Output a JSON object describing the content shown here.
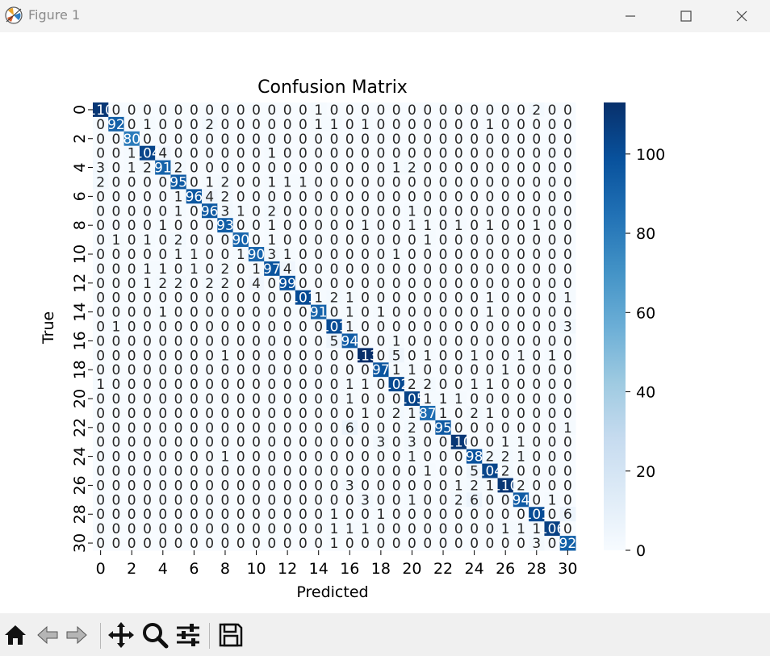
{
  "window": {
    "title": "Figure 1",
    "controls": [
      "minimize-icon",
      "maximize-icon",
      "close-icon"
    ]
  },
  "toolbar": {
    "tools": [
      "home-icon",
      "back-icon",
      "forward-icon",
      "pan-icon",
      "zoom-icon",
      "configure-subplots-icon",
      "save-icon"
    ]
  },
  "chart_data": {
    "type": "heatmap",
    "title": "Confusion Matrix",
    "xlabel": "Predicted",
    "ylabel": "True",
    "x_ticks": [
      0,
      2,
      4,
      6,
      8,
      10,
      12,
      14,
      16,
      18,
      20,
      22,
      24,
      26,
      28,
      30
    ],
    "y_ticks": [
      0,
      2,
      4,
      6,
      8,
      10,
      12,
      14,
      16,
      18,
      20,
      22,
      24,
      26,
      28,
      30
    ],
    "colormap": "Blues",
    "colorbar": {
      "ticks": [
        0,
        20,
        40,
        60,
        80,
        100
      ],
      "range": [
        0,
        113
      ]
    },
    "matrix": [
      [
        110,
        0,
        0,
        0,
        0,
        0,
        0,
        0,
        0,
        0,
        0,
        0,
        0,
        0,
        1,
        0,
        0,
        0,
        0,
        0,
        0,
        0,
        0,
        0,
        0,
        0,
        0,
        0,
        2,
        0,
        0
      ],
      [
        0,
        92,
        0,
        1,
        0,
        0,
        0,
        2,
        0,
        0,
        0,
        0,
        0,
        0,
        1,
        1,
        0,
        1,
        0,
        0,
        0,
        0,
        0,
        0,
        0,
        1,
        0,
        0,
        0,
        0,
        0
      ],
      [
        0,
        0,
        80,
        0,
        0,
        0,
        0,
        0,
        0,
        0,
        0,
        0,
        0,
        0,
        0,
        0,
        0,
        0,
        0,
        0,
        0,
        0,
        0,
        0,
        0,
        0,
        0,
        0,
        0,
        0,
        0
      ],
      [
        0,
        0,
        1,
        104,
        4,
        0,
        0,
        0,
        0,
        0,
        0,
        1,
        0,
        0,
        0,
        0,
        0,
        0,
        0,
        0,
        0,
        0,
        0,
        0,
        0,
        0,
        0,
        0,
        0,
        0,
        0
      ],
      [
        3,
        0,
        1,
        2,
        91,
        2,
        0,
        0,
        0,
        0,
        0,
        0,
        0,
        0,
        0,
        0,
        0,
        0,
        0,
        1,
        2,
        0,
        0,
        0,
        0,
        0,
        0,
        0,
        0,
        0,
        0
      ],
      [
        2,
        0,
        0,
        0,
        0,
        95,
        0,
        1,
        2,
        0,
        0,
        1,
        1,
        1,
        0,
        0,
        0,
        0,
        0,
        0,
        0,
        0,
        0,
        0,
        0,
        0,
        0,
        0,
        0,
        0,
        0
      ],
      [
        0,
        0,
        0,
        0,
        0,
        1,
        96,
        4,
        2,
        0,
        0,
        0,
        0,
        0,
        0,
        0,
        0,
        0,
        0,
        0,
        0,
        0,
        0,
        0,
        0,
        0,
        0,
        0,
        0,
        0,
        0
      ],
      [
        0,
        0,
        0,
        0,
        0,
        1,
        0,
        96,
        3,
        1,
        0,
        2,
        0,
        0,
        0,
        0,
        0,
        0,
        0,
        0,
        1,
        0,
        0,
        0,
        0,
        0,
        0,
        0,
        0,
        0,
        0
      ],
      [
        0,
        0,
        0,
        0,
        1,
        0,
        0,
        0,
        93,
        0,
        0,
        1,
        0,
        0,
        0,
        0,
        0,
        1,
        0,
        0,
        1,
        1,
        0,
        1,
        0,
        1,
        0,
        0,
        1,
        0,
        0
      ],
      [
        0,
        1,
        0,
        1,
        0,
        2,
        0,
        0,
        0,
        90,
        0,
        1,
        0,
        0,
        0,
        0,
        0,
        0,
        0,
        0,
        0,
        1,
        0,
        0,
        0,
        0,
        0,
        0,
        0,
        0,
        0
      ],
      [
        0,
        0,
        0,
        0,
        0,
        1,
        1,
        0,
        0,
        1,
        90,
        3,
        1,
        0,
        0,
        0,
        0,
        0,
        0,
        1,
        0,
        0,
        0,
        0,
        0,
        0,
        0,
        0,
        0,
        0,
        0
      ],
      [
        0,
        0,
        0,
        1,
        1,
        0,
        1,
        0,
        2,
        0,
        1,
        97,
        4,
        0,
        0,
        0,
        0,
        0,
        0,
        0,
        0,
        0,
        0,
        0,
        0,
        0,
        0,
        0,
        0,
        0,
        0
      ],
      [
        0,
        0,
        0,
        1,
        2,
        2,
        0,
        2,
        2,
        0,
        4,
        0,
        99,
        0,
        0,
        0,
        0,
        0,
        0,
        0,
        0,
        0,
        0,
        0,
        0,
        0,
        0,
        0,
        0,
        0,
        0
      ],
      [
        0,
        0,
        0,
        0,
        0,
        0,
        0,
        0,
        0,
        0,
        0,
        0,
        0,
        101,
        1,
        2,
        1,
        0,
        0,
        0,
        0,
        0,
        0,
        0,
        0,
        1,
        0,
        0,
        0,
        0,
        1
      ],
      [
        0,
        0,
        0,
        0,
        1,
        0,
        0,
        0,
        0,
        0,
        0,
        0,
        0,
        0,
        91,
        0,
        1,
        0,
        1,
        0,
        0,
        0,
        0,
        0,
        0,
        1,
        0,
        0,
        0,
        0,
        0
      ],
      [
        0,
        1,
        0,
        0,
        0,
        0,
        0,
        0,
        0,
        0,
        0,
        0,
        0,
        0,
        0,
        101,
        1,
        0,
        0,
        0,
        0,
        0,
        0,
        0,
        0,
        0,
        0,
        0,
        0,
        0,
        3
      ],
      [
        0,
        0,
        0,
        0,
        0,
        0,
        0,
        0,
        0,
        0,
        0,
        0,
        0,
        0,
        0,
        5,
        94,
        0,
        0,
        1,
        0,
        0,
        0,
        0,
        0,
        0,
        0,
        0,
        0,
        0,
        0
      ],
      [
        0,
        0,
        0,
        0,
        0,
        0,
        0,
        0,
        1,
        0,
        0,
        0,
        0,
        0,
        0,
        0,
        0,
        113,
        0,
        5,
        0,
        1,
        0,
        0,
        1,
        0,
        0,
        1,
        0,
        1,
        0
      ],
      [
        0,
        0,
        0,
        0,
        0,
        0,
        0,
        0,
        0,
        0,
        0,
        0,
        0,
        0,
        0,
        0,
        0,
        0,
        97,
        1,
        1,
        0,
        0,
        0,
        0,
        0,
        1,
        0,
        0,
        0,
        0
      ],
      [
        1,
        0,
        0,
        0,
        0,
        0,
        0,
        0,
        0,
        0,
        0,
        0,
        0,
        0,
        0,
        0,
        1,
        1,
        0,
        102,
        2,
        2,
        0,
        0,
        1,
        1,
        0,
        0,
        0,
        0,
        0
      ],
      [
        0,
        0,
        0,
        0,
        0,
        0,
        0,
        0,
        0,
        0,
        0,
        0,
        0,
        0,
        0,
        0,
        1,
        0,
        0,
        0,
        105,
        1,
        1,
        1,
        0,
        0,
        0,
        0,
        0,
        0,
        0
      ],
      [
        0,
        0,
        0,
        0,
        0,
        0,
        0,
        0,
        0,
        0,
        0,
        0,
        0,
        0,
        0,
        0,
        0,
        1,
        0,
        2,
        1,
        87,
        1,
        0,
        2,
        1,
        0,
        0,
        0,
        0,
        0
      ],
      [
        0,
        0,
        0,
        0,
        0,
        0,
        0,
        0,
        0,
        0,
        0,
        0,
        0,
        0,
        0,
        0,
        6,
        0,
        0,
        0,
        2,
        0,
        95,
        0,
        0,
        0,
        0,
        0,
        0,
        0,
        1
      ],
      [
        0,
        0,
        0,
        0,
        0,
        0,
        0,
        0,
        0,
        0,
        0,
        0,
        0,
        0,
        0,
        0,
        0,
        0,
        3,
        0,
        3,
        0,
        0,
        110,
        0,
        0,
        1,
        1,
        0,
        0,
        0
      ],
      [
        0,
        0,
        0,
        0,
        0,
        0,
        0,
        0,
        1,
        0,
        0,
        0,
        0,
        0,
        0,
        0,
        0,
        0,
        0,
        0,
        1,
        0,
        0,
        0,
        98,
        2,
        2,
        1,
        0,
        0,
        0
      ],
      [
        0,
        0,
        0,
        0,
        0,
        0,
        0,
        0,
        0,
        0,
        0,
        0,
        0,
        0,
        0,
        0,
        0,
        0,
        0,
        0,
        0,
        1,
        0,
        0,
        5,
        104,
        2,
        0,
        0,
        0,
        0
      ],
      [
        0,
        0,
        0,
        0,
        0,
        0,
        0,
        0,
        0,
        0,
        0,
        0,
        0,
        0,
        0,
        0,
        3,
        0,
        0,
        0,
        0,
        0,
        0,
        1,
        2,
        1,
        110,
        2,
        0,
        0,
        0
      ],
      [
        0,
        0,
        0,
        0,
        0,
        0,
        0,
        0,
        0,
        0,
        0,
        0,
        0,
        0,
        0,
        0,
        0,
        3,
        0,
        0,
        1,
        0,
        0,
        2,
        6,
        0,
        0,
        94,
        0,
        1,
        0
      ],
      [
        0,
        0,
        0,
        0,
        0,
        0,
        0,
        0,
        0,
        0,
        0,
        0,
        0,
        0,
        0,
        1,
        0,
        0,
        1,
        0,
        0,
        0,
        0,
        0,
        0,
        0,
        0,
        0,
        101,
        0,
        6
      ],
      [
        0,
        0,
        0,
        0,
        0,
        0,
        0,
        0,
        0,
        0,
        0,
        0,
        0,
        0,
        0,
        1,
        1,
        1,
        0,
        0,
        0,
        0,
        0,
        0,
        0,
        0,
        1,
        1,
        1,
        106,
        0
      ],
      [
        0,
        0,
        0,
        0,
        0,
        0,
        0,
        0,
        0,
        0,
        0,
        0,
        0,
        0,
        0,
        1,
        0,
        0,
        0,
        0,
        0,
        0,
        0,
        0,
        0,
        0,
        0,
        0,
        3,
        0,
        92
      ]
    ]
  }
}
